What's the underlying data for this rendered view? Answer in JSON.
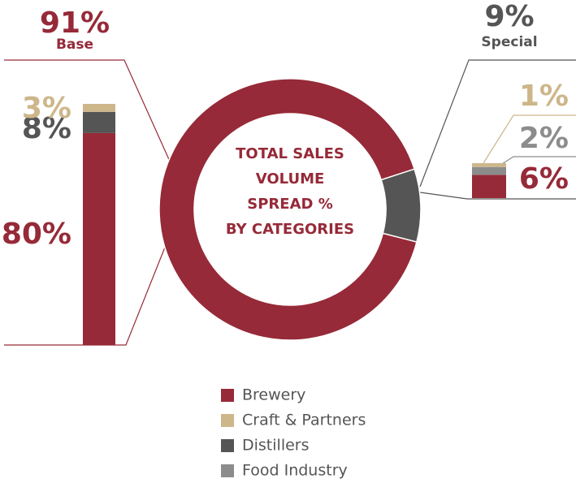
{
  "chart_data": [
    {
      "type": "donut",
      "title": [
        "TOTAL SALES",
        "VOLUME",
        "SPREAD %",
        "BY CATEGORIES"
      ],
      "categories": [
        "Base",
        "Special"
      ],
      "values": [
        91,
        9
      ],
      "value_labels": [
        "91%",
        "9%"
      ],
      "colors": [
        "#962a38",
        "#555555"
      ]
    },
    {
      "type": "stacked_bar",
      "series": [
        {
          "name": "Brewery",
          "color": "#962a38",
          "values": [
            80,
            6
          ],
          "value_labels": [
            "80%",
            "6%"
          ]
        },
        {
          "name": "Craft & Partners",
          "color": "#cdb68a",
          "values": [
            3,
            1
          ],
          "value_labels": [
            "3%",
            "1%"
          ]
        },
        {
          "name": "Distillers",
          "color": "#555555",
          "values": [
            8,
            null
          ],
          "value_labels": [
            "8%",
            null
          ]
        },
        {
          "name": "Food Industry",
          "color": "#8c8c8c",
          "values": [
            null,
            2
          ],
          "value_labels": [
            null,
            "2%"
          ]
        }
      ]
    }
  ]
}
